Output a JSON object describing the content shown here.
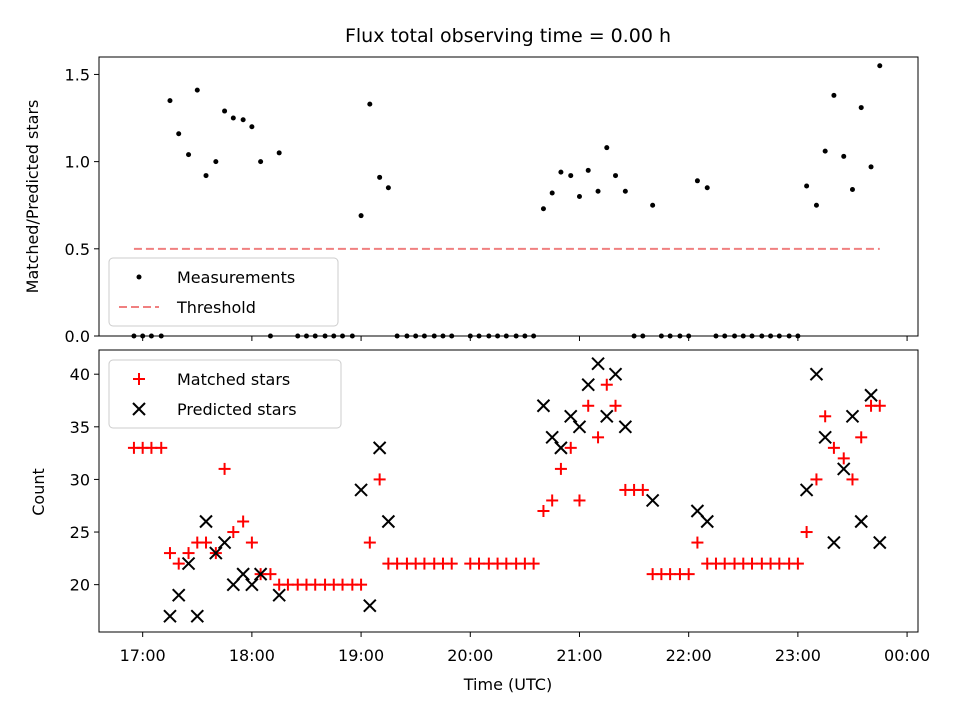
{
  "chart_data": {
    "title": "Flux total observing time = 0.00 h",
    "xlabel": "Time (UTC)",
    "x_ticks": [
      {
        "hour": 17,
        "label": "17:00"
      },
      {
        "hour": 18,
        "label": "18:00"
      },
      {
        "hour": 19,
        "label": "19:00"
      },
      {
        "hour": 20,
        "label": "20:00"
      },
      {
        "hour": 21,
        "label": "21:00"
      },
      {
        "hour": 22,
        "label": "22:00"
      },
      {
        "hour": 23,
        "label": "23:00"
      },
      {
        "hour": 24,
        "label": "00:00"
      }
    ],
    "xlim": [
      16.6,
      24.1
    ],
    "top": {
      "type": "scatter",
      "ylabel": "Matched/Predicted stars",
      "ylim": [
        0,
        1.6
      ],
      "yticks": [
        {
          "value": 0.0,
          "label": "0.0"
        },
        {
          "value": 0.5,
          "label": "0.5"
        },
        {
          "value": 1.0,
          "label": "1.0"
        },
        {
          "value": 1.5,
          "label": "1.5"
        }
      ],
      "threshold": {
        "name": "Threshold",
        "value": 0.5,
        "x_range": [
          16.92,
          23.75
        ],
        "color": "#f08080"
      },
      "measurements": {
        "name": "Measurements",
        "color": "#000000",
        "points": [
          [
            16.92,
            0
          ],
          [
            17.0,
            0
          ],
          [
            17.08,
            0
          ],
          [
            17.17,
            0
          ],
          [
            17.25,
            1.35
          ],
          [
            17.33,
            1.16
          ],
          [
            17.42,
            1.04
          ],
          [
            17.5,
            1.41
          ],
          [
            17.58,
            0.92
          ],
          [
            17.67,
            1.0
          ],
          [
            17.75,
            1.29
          ],
          [
            17.83,
            1.25
          ],
          [
            17.92,
            1.24
          ],
          [
            18.0,
            1.2
          ],
          [
            18.08,
            1.0
          ],
          [
            18.25,
            1.05
          ],
          [
            18.17,
            0
          ],
          [
            18.42,
            0
          ],
          [
            18.5,
            0
          ],
          [
            18.58,
            0
          ],
          [
            18.67,
            0
          ],
          [
            18.75,
            0
          ],
          [
            18.83,
            0
          ],
          [
            18.92,
            0
          ],
          [
            19.0,
            0.69
          ],
          [
            19.08,
            1.33
          ],
          [
            19.17,
            0.91
          ],
          [
            19.25,
            0.85
          ],
          [
            19.33,
            0
          ],
          [
            19.42,
            0
          ],
          [
            19.5,
            0
          ],
          [
            19.58,
            0
          ],
          [
            19.67,
            0
          ],
          [
            19.75,
            0
          ],
          [
            19.83,
            0
          ],
          [
            20.0,
            0
          ],
          [
            20.08,
            0
          ],
          [
            20.17,
            0
          ],
          [
            20.25,
            0
          ],
          [
            20.33,
            0
          ],
          [
            20.42,
            0
          ],
          [
            20.5,
            0
          ],
          [
            20.58,
            0
          ],
          [
            20.67,
            0.73
          ],
          [
            20.75,
            0.82
          ],
          [
            20.83,
            0.94
          ],
          [
            20.92,
            0.92
          ],
          [
            21.0,
            0.8
          ],
          [
            21.08,
            0.95
          ],
          [
            21.17,
            0.83
          ],
          [
            21.25,
            1.08
          ],
          [
            21.33,
            0.92
          ],
          [
            21.42,
            0.83
          ],
          [
            21.67,
            0.75
          ],
          [
            21.5,
            0
          ],
          [
            21.58,
            0
          ],
          [
            21.75,
            0
          ],
          [
            21.83,
            0
          ],
          [
            21.92,
            0
          ],
          [
            22.0,
            0
          ],
          [
            22.08,
            0.89
          ],
          [
            22.17,
            0.85
          ],
          [
            22.25,
            0
          ],
          [
            22.33,
            0
          ],
          [
            22.42,
            0
          ],
          [
            22.5,
            0
          ],
          [
            22.58,
            0
          ],
          [
            22.67,
            0
          ],
          [
            22.75,
            0
          ],
          [
            22.83,
            0
          ],
          [
            22.92,
            0
          ],
          [
            23.0,
            0
          ],
          [
            23.08,
            0.86
          ],
          [
            23.17,
            0.75
          ],
          [
            23.25,
            1.06
          ],
          [
            23.33,
            1.38
          ],
          [
            23.42,
            1.03
          ],
          [
            23.5,
            0.84
          ],
          [
            23.58,
            1.31
          ],
          [
            23.67,
            0.97
          ],
          [
            23.75,
            1.55
          ]
        ]
      }
    },
    "bottom": {
      "type": "scatter",
      "ylabel": "Count",
      "ylim": [
        15.5,
        42.3
      ],
      "yticks": [
        {
          "value": 20,
          "label": "20"
        },
        {
          "value": 25,
          "label": "25"
        },
        {
          "value": 30,
          "label": "30"
        },
        {
          "value": 35,
          "label": "35"
        },
        {
          "value": 40,
          "label": "40"
        }
      ],
      "matched": {
        "name": "Matched stars",
        "marker": "+",
        "color": "#ff0000",
        "points": [
          [
            16.92,
            33
          ],
          [
            17.0,
            33
          ],
          [
            17.08,
            33
          ],
          [
            17.17,
            33
          ],
          [
            17.25,
            23
          ],
          [
            17.33,
            22
          ],
          [
            17.42,
            23
          ],
          [
            17.5,
            24
          ],
          [
            17.58,
            24
          ],
          [
            17.67,
            23
          ],
          [
            17.75,
            31
          ],
          [
            17.83,
            25
          ],
          [
            17.92,
            26
          ],
          [
            18.0,
            24
          ],
          [
            18.08,
            21
          ],
          [
            18.17,
            21
          ],
          [
            18.25,
            20
          ],
          [
            18.33,
            20
          ],
          [
            18.42,
            20
          ],
          [
            18.5,
            20
          ],
          [
            18.58,
            20
          ],
          [
            18.67,
            20
          ],
          [
            18.75,
            20
          ],
          [
            18.83,
            20
          ],
          [
            18.92,
            20
          ],
          [
            19.0,
            20
          ],
          [
            19.08,
            24
          ],
          [
            19.17,
            30
          ],
          [
            19.25,
            22
          ],
          [
            19.33,
            22
          ],
          [
            19.42,
            22
          ],
          [
            19.5,
            22
          ],
          [
            19.58,
            22
          ],
          [
            19.67,
            22
          ],
          [
            19.75,
            22
          ],
          [
            19.83,
            22
          ],
          [
            20.0,
            22
          ],
          [
            20.08,
            22
          ],
          [
            20.17,
            22
          ],
          [
            20.25,
            22
          ],
          [
            20.33,
            22
          ],
          [
            20.42,
            22
          ],
          [
            20.5,
            22
          ],
          [
            20.58,
            22
          ],
          [
            20.67,
            27
          ],
          [
            20.75,
            28
          ],
          [
            20.83,
            31
          ],
          [
            20.92,
            33
          ],
          [
            21.0,
            28
          ],
          [
            21.08,
            37
          ],
          [
            21.17,
            34
          ],
          [
            21.25,
            39
          ],
          [
            21.33,
            37
          ],
          [
            21.42,
            29
          ],
          [
            21.5,
            29
          ],
          [
            21.58,
            29
          ],
          [
            21.67,
            21
          ],
          [
            21.75,
            21
          ],
          [
            21.83,
            21
          ],
          [
            21.92,
            21
          ],
          [
            22.0,
            21
          ],
          [
            22.08,
            24
          ],
          [
            22.17,
            22
          ],
          [
            22.25,
            22
          ],
          [
            22.33,
            22
          ],
          [
            22.42,
            22
          ],
          [
            22.5,
            22
          ],
          [
            22.58,
            22
          ],
          [
            22.67,
            22
          ],
          [
            22.75,
            22
          ],
          [
            22.83,
            22
          ],
          [
            22.92,
            22
          ],
          [
            23.0,
            22
          ],
          [
            23.08,
            25
          ],
          [
            23.17,
            30
          ],
          [
            23.25,
            36
          ],
          [
            23.33,
            33
          ],
          [
            23.42,
            32
          ],
          [
            23.5,
            30
          ],
          [
            23.58,
            34
          ],
          [
            23.67,
            37
          ],
          [
            23.75,
            37
          ]
        ]
      },
      "predicted": {
        "name": "Predicted stars",
        "marker": "x",
        "color": "#000000",
        "points": [
          [
            17.25,
            17
          ],
          [
            17.33,
            19
          ],
          [
            17.42,
            22
          ],
          [
            17.5,
            17
          ],
          [
            17.58,
            26
          ],
          [
            17.67,
            23
          ],
          [
            17.75,
            24
          ],
          [
            17.83,
            20
          ],
          [
            17.92,
            21
          ],
          [
            18.0,
            20
          ],
          [
            18.08,
            21
          ],
          [
            18.25,
            19
          ],
          [
            19.0,
            29
          ],
          [
            19.08,
            18
          ],
          [
            19.17,
            33
          ],
          [
            19.25,
            26
          ],
          [
            20.67,
            37
          ],
          [
            20.75,
            34
          ],
          [
            20.83,
            33
          ],
          [
            20.92,
            36
          ],
          [
            21.0,
            35
          ],
          [
            21.08,
            39
          ],
          [
            21.17,
            41
          ],
          [
            21.25,
            36
          ],
          [
            21.33,
            40
          ],
          [
            21.42,
            35
          ],
          [
            21.67,
            28
          ],
          [
            22.08,
            27
          ],
          [
            22.17,
            26
          ],
          [
            23.08,
            29
          ],
          [
            23.17,
            40
          ],
          [
            23.25,
            34
          ],
          [
            23.33,
            24
          ],
          [
            23.42,
            31
          ],
          [
            23.5,
            36
          ],
          [
            23.58,
            26
          ],
          [
            23.67,
            38
          ],
          [
            23.75,
            24
          ]
        ]
      }
    }
  }
}
